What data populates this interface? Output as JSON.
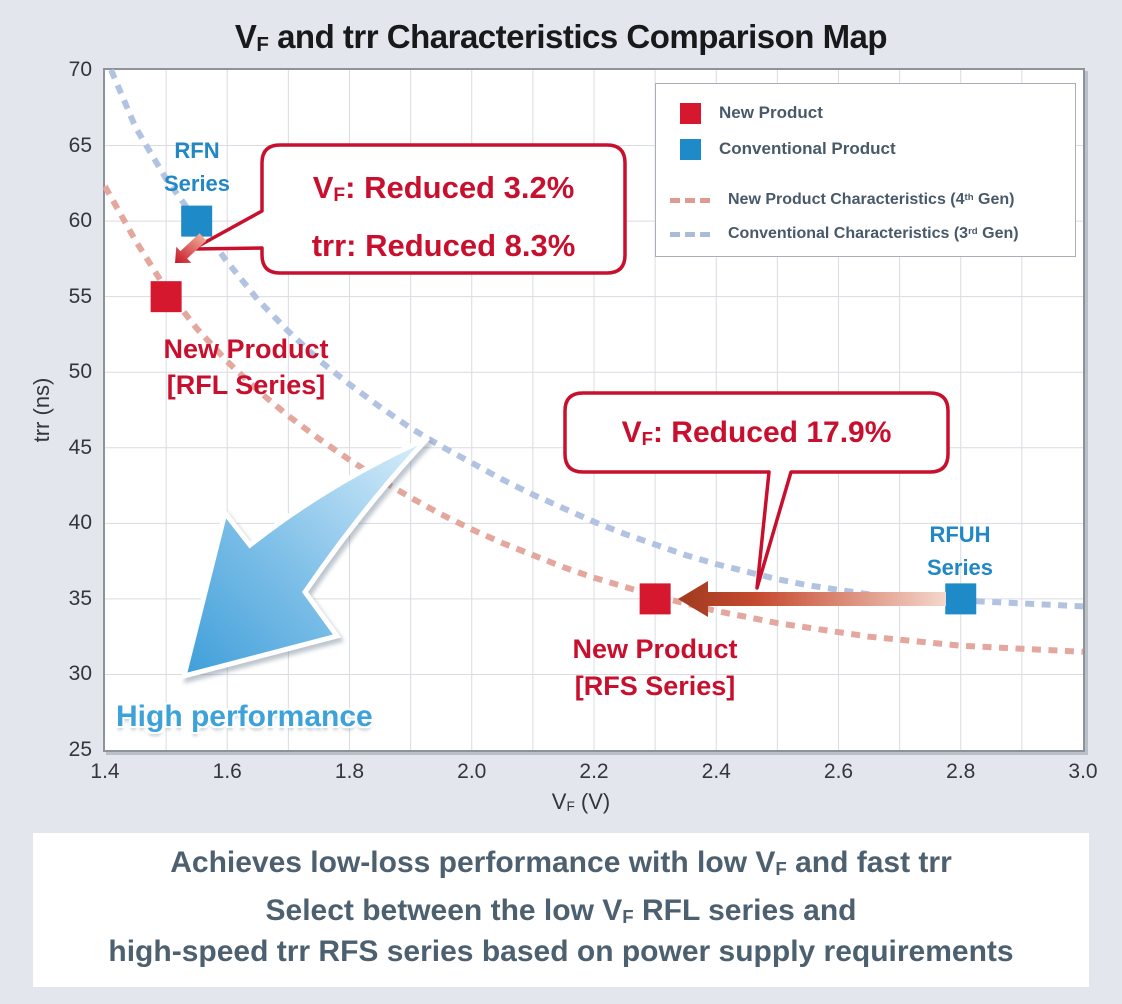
{
  "title": {
    "pre": "V",
    "sub": "F",
    "post": " and trr Characteristics Comparison Map"
  },
  "axes": {
    "x": {
      "pre": "V",
      "sub": "F",
      "post": " (V)"
    },
    "y": "trr (ns)"
  },
  "legend": {
    "items": [
      {
        "label": "New Product",
        "swatch": "square",
        "color": "#d6182e"
      },
      {
        "label": "Conventional Product",
        "swatch": "square",
        "color": "#1e8bc8"
      },
      {
        "pre": "New Product Characteristics (4",
        "sup": "th",
        "post": " Gen)",
        "swatch": "dash",
        "color": "#dd9b92"
      },
      {
        "pre": "Conventional Characteristics (3",
        "sup": "rd",
        "post": " Gen)",
        "swatch": "dash",
        "color": "#a9bcd9"
      }
    ]
  },
  "caption": {
    "line1": {
      "pre": "Achieves low-loss performance with low V",
      "sub": "F",
      "post": " and fast trr"
    },
    "line2": {
      "pre": "Select between the low V",
      "sub": "F",
      "post": " RFL series and"
    },
    "line3": "high-speed trr RFS series based on power supply requirements"
  },
  "colors": {
    "accent_red": "#c8102e",
    "point_red": "#d6182e",
    "point_blue": "#1e8bc8",
    "curve_red": "#e4a79e",
    "curve_blue": "#b2c3e1",
    "slate_text": "#4d6070",
    "blue_label": "#2288c5",
    "background": "#e3e7ed",
    "grid": "#d9dce1"
  },
  "chart_data": {
    "type": "scatter",
    "title": "VF and trr Characteristics Comparison Map",
    "xlabel": "VF (V)",
    "ylabel": "trr (ns)",
    "xlim": [
      1.4,
      3.0
    ],
    "ylim": [
      25,
      70
    ],
    "xticks": [
      1.4,
      1.6,
      1.8,
      2.0,
      2.2,
      2.4,
      2.6,
      2.8,
      3.0
    ],
    "yticks": [
      25,
      30,
      35,
      40,
      45,
      50,
      55,
      60,
      65,
      70
    ],
    "grid": {
      "x": [
        1.5,
        1.6,
        1.7,
        1.8,
        1.9,
        2.0,
        2.1,
        2.2,
        2.3,
        2.4,
        2.5,
        2.6,
        2.7,
        2.8,
        2.9
      ],
      "y": [
        30,
        35,
        40,
        45,
        50,
        55,
        60,
        65
      ]
    },
    "points": [
      {
        "name": "RFN Series",
        "series": "conventional",
        "vf": 1.55,
        "trr": 60,
        "color": "#1e8bc8",
        "label_line1": "RFN",
        "label_line2": "Series"
      },
      {
        "name": "New Product [RFL Series]",
        "series": "new",
        "vf": 1.5,
        "trr": 55,
        "color": "#d6182e",
        "label_line1": "New Product",
        "label_line2": "[RFL Series]"
      },
      {
        "name": "New Product [RFS Series]",
        "series": "new",
        "vf": 2.3,
        "trr": 35,
        "color": "#d6182e",
        "label_line1": "New Product",
        "label_line2": "[RFS Series]"
      },
      {
        "name": "RFUH Series",
        "series": "conventional",
        "vf": 2.8,
        "trr": 35,
        "color": "#1e8bc8",
        "label_line1": "RFUH",
        "label_line2": "Series"
      }
    ],
    "curves": [
      {
        "name": "New Product Characteristics (4th Gen)",
        "color": "#e4a79e",
        "points": [
          [
            1.4,
            62.3
          ],
          [
            1.45,
            58.7
          ],
          [
            1.5,
            55.5
          ],
          [
            1.55,
            52.9
          ],
          [
            1.6,
            50.7
          ],
          [
            1.65,
            48.8
          ],
          [
            1.7,
            47.1
          ],
          [
            1.75,
            45.6
          ],
          [
            1.8,
            44.2
          ],
          [
            1.85,
            42.9
          ],
          [
            1.9,
            41.7
          ],
          [
            1.95,
            40.6
          ],
          [
            2.0,
            39.6
          ],
          [
            2.05,
            38.7
          ],
          [
            2.1,
            37.9
          ],
          [
            2.15,
            37.1
          ],
          [
            2.2,
            36.4
          ],
          [
            2.25,
            35.8
          ],
          [
            2.3,
            35.2
          ],
          [
            2.35,
            34.7
          ],
          [
            2.4,
            34.2
          ],
          [
            2.45,
            33.8
          ],
          [
            2.5,
            33.4
          ],
          [
            2.55,
            33.1
          ],
          [
            2.6,
            32.8
          ],
          [
            2.65,
            32.5
          ],
          [
            2.7,
            32.3
          ],
          [
            2.75,
            32.1
          ],
          [
            2.8,
            31.9
          ],
          [
            2.85,
            31.8
          ],
          [
            2.9,
            31.7
          ],
          [
            2.95,
            31.6
          ],
          [
            3.0,
            31.5
          ]
        ]
      },
      {
        "name": "Conventional Characteristics (3rd Gen)",
        "color": "#b2c3e1",
        "points": [
          [
            1.41,
            70
          ],
          [
            1.45,
            66.2
          ],
          [
            1.5,
            62.8
          ],
          [
            1.55,
            60
          ],
          [
            1.6,
            57.3
          ],
          [
            1.65,
            54.8
          ],
          [
            1.7,
            52.7
          ],
          [
            1.75,
            50.8
          ],
          [
            1.8,
            49.2
          ],
          [
            1.85,
            47.7
          ],
          [
            1.9,
            46.3
          ],
          [
            1.95,
            45.1
          ],
          [
            2.0,
            44.0
          ],
          [
            2.05,
            42.9
          ],
          [
            2.1,
            41.9
          ],
          [
            2.15,
            41.0
          ],
          [
            2.2,
            40.1
          ],
          [
            2.25,
            39.3
          ],
          [
            2.3,
            38.6
          ],
          [
            2.35,
            37.9
          ],
          [
            2.4,
            37.3
          ],
          [
            2.45,
            36.8
          ],
          [
            2.5,
            36.3
          ],
          [
            2.55,
            35.9
          ],
          [
            2.6,
            35.6
          ],
          [
            2.65,
            35.3
          ],
          [
            2.7,
            35.1
          ],
          [
            2.75,
            35.0
          ],
          [
            2.8,
            34.9
          ],
          [
            2.85,
            34.8
          ],
          [
            2.9,
            34.7
          ],
          [
            2.95,
            34.6
          ],
          [
            3.0,
            34.5
          ]
        ]
      }
    ],
    "annotations": [
      {
        "id": "rfn-to-rfl",
        "line1": {
          "pre": "V",
          "sub": "F",
          "post": ": Reduced 3.2%"
        },
        "line2": "trr: Reduced 8.3%",
        "from": {
          "series": "RFN Series",
          "vf": 1.55,
          "trr": 60
        },
        "to": {
          "series": "New Product [RFL Series]",
          "vf": 1.5,
          "trr": 55
        }
      },
      {
        "id": "rfuh-to-rfs",
        "line1": {
          "pre": "V",
          "sub": "F",
          "post": ": Reduced 17.9%"
        },
        "from": {
          "series": "RFUH Series",
          "vf": 2.8,
          "trr": 35
        },
        "to": {
          "series": "New Product [RFS Series]",
          "vf": 2.3,
          "trr": 35
        }
      },
      {
        "id": "high-performance",
        "text": "High performance",
        "direction": "lower-left-is-better"
      }
    ]
  }
}
